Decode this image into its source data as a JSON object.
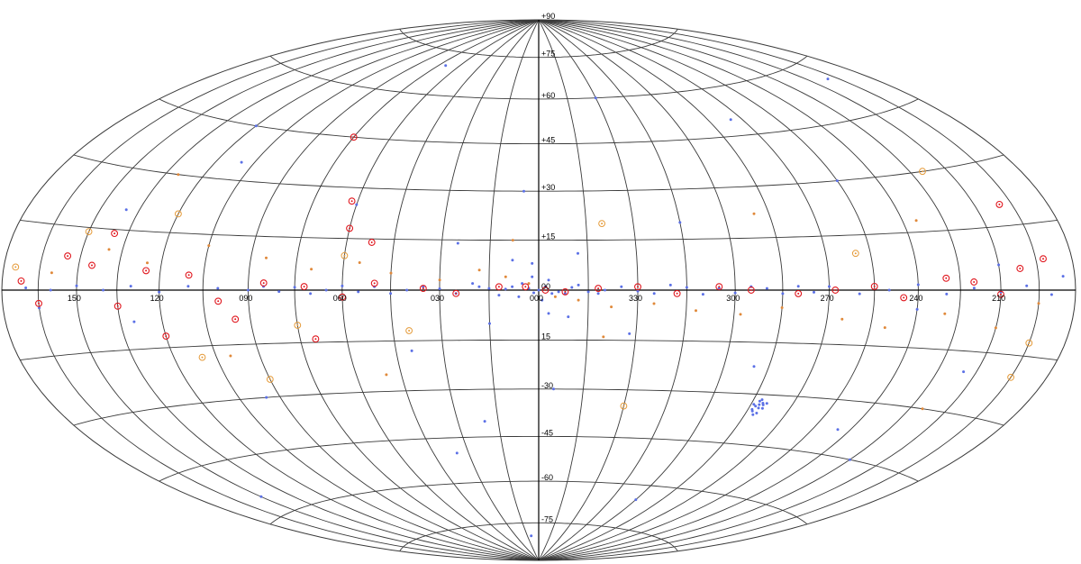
{
  "chart_data": {
    "type": "scatter",
    "projection": "aitoff-hammer",
    "coordinate_system": "galactic",
    "grid": true,
    "lat_ticks": [
      "+90",
      "+75",
      "+60",
      "+45",
      "+30",
      "+15",
      "00",
      "15",
      "-30",
      "-45",
      "-60",
      "-75"
    ],
    "lon_ticks": [
      "150",
      "120",
      "090",
      "060",
      "030",
      "000",
      "330",
      "300",
      "270",
      "240",
      "210"
    ],
    "meridians_deg": [
      -180,
      -165,
      -150,
      -135,
      -120,
      -105,
      -90,
      -75,
      -60,
      -45,
      -30,
      -15,
      0,
      15,
      30,
      45,
      60,
      75,
      90,
      105,
      120,
      135,
      150,
      165,
      180
    ],
    "parallels_deg": [
      -75,
      -60,
      -45,
      -30,
      -15,
      0,
      15,
      30,
      45,
      60,
      75
    ],
    "colors": {
      "blue_points": "#5b70e6",
      "orange_points": "#e0893a",
      "red_circles": "#e0181f",
      "orange_circles": "#e59b3a",
      "grid": "#3a3a3a"
    },
    "series": [
      {
        "key": "blue",
        "marker": "dot",
        "points": [
          [
            0,
            0
          ],
          [
            1.5,
            -0.8
          ],
          [
            -2,
            1
          ],
          [
            3,
            0.5
          ],
          [
            -4,
            -1
          ],
          [
            5,
            2
          ],
          [
            -1,
            -3
          ],
          [
            2,
            4
          ],
          [
            -3,
            3
          ],
          [
            6,
            -2
          ],
          [
            -6,
            -0.5
          ],
          [
            8,
            1
          ],
          [
            -8,
            -1
          ],
          [
            10,
            0.3
          ],
          [
            -10,
            0.8
          ],
          [
            12,
            -1.5
          ],
          [
            -12,
            1.5
          ],
          [
            15,
            0.5
          ],
          [
            -15,
            -0.5
          ],
          [
            18,
            1
          ],
          [
            -18,
            -1
          ],
          [
            20,
            2
          ],
          [
            -20,
            0
          ],
          [
            25,
            -1
          ],
          [
            -25,
            1
          ],
          [
            30,
            0.4
          ],
          [
            -30,
            -0.3
          ],
          [
            35,
            1
          ],
          [
            -35,
            -1
          ],
          [
            40,
            0
          ],
          [
            -40,
            1.5
          ],
          [
            45,
            -1
          ],
          [
            -45,
            0.8
          ],
          [
            50,
            1
          ],
          [
            -50,
            -1.2
          ],
          [
            55,
            -0.5
          ],
          [
            -55,
            0.6
          ],
          [
            60,
            1.2
          ],
          [
            -60,
            -0.8
          ],
          [
            65,
            0
          ],
          [
            -65,
            1
          ],
          [
            70,
            -1
          ],
          [
            -70,
            0.5
          ],
          [
            75,
            0.8
          ],
          [
            -75,
            -1
          ],
          [
            80,
            -0.4
          ],
          [
            -80,
            1.1
          ],
          [
            85,
            1
          ],
          [
            -85,
            -0.6
          ],
          [
            90,
            0
          ],
          [
            -90,
            1
          ],
          [
            100,
            0.5
          ],
          [
            -100,
            -1
          ],
          [
            110,
            1
          ],
          [
            -110,
            0
          ],
          [
            120,
            -0.5
          ],
          [
            -120,
            1.4
          ],
          [
            130,
            1
          ],
          [
            -130,
            -1
          ],
          [
            140,
            0
          ],
          [
            -140,
            0.5
          ],
          [
            150,
            1
          ],
          [
            -150,
            -0.5
          ],
          [
            160,
            0
          ],
          [
            -160,
            1
          ],
          [
            170,
            0.5
          ],
          [
            -170,
            -1
          ],
          [
            -78,
            -33
          ],
          [
            -79,
            -32.5
          ],
          [
            -77,
            -33.5
          ],
          [
            -78.5,
            -34
          ],
          [
            -77.5,
            -32
          ],
          [
            -79.5,
            -33
          ],
          [
            -76.5,
            -34.5
          ],
          [
            -78,
            -31.5
          ],
          [
            -80,
            -34
          ],
          [
            -77,
            -35
          ],
          [
            -79,
            -35.5
          ],
          [
            -76,
            -33
          ],
          [
            -80.5,
            -32.5
          ],
          [
            -78,
            -36
          ],
          [
            2,
            8
          ],
          [
            -3,
            -7
          ],
          [
            8,
            9
          ],
          [
            -9,
            -8
          ],
          [
            15,
            -10
          ],
          [
            -12,
            11
          ],
          [
            25,
            14
          ],
          [
            -28,
            -13
          ],
          [
            40,
            -18
          ],
          [
            -45,
            20
          ],
          [
            60,
            25
          ],
          [
            -70,
            -22
          ],
          [
            95,
            -30
          ],
          [
            -105,
            30
          ],
          [
            120,
            45
          ],
          [
            -135,
            -45
          ],
          [
            150,
            -55
          ],
          [
            -160,
            55
          ],
          [
            20,
            -40
          ],
          [
            -30,
            60
          ],
          [
            70,
            70
          ],
          [
            -60,
            -65
          ],
          [
            10,
            -80
          ],
          [
            -120,
            -5
          ],
          [
            130,
            -8
          ],
          [
            -150,
            6
          ],
          [
            165,
            -4
          ],
          [
            -175,
            3
          ],
          [
            5,
            30
          ],
          [
            -5,
            -30
          ],
          [
            35,
            -50
          ],
          [
            -85,
            50
          ],
          [
            110,
            35
          ],
          [
            -115,
            -38
          ],
          [
            140,
            20
          ],
          [
            -145,
            -20
          ]
        ]
      },
      {
        "key": "orange",
        "marker": "dot",
        "points": [
          [
            3,
            2
          ],
          [
            -5,
            -2
          ],
          [
            10,
            4
          ],
          [
            -12,
            -3
          ],
          [
            18,
            6
          ],
          [
            -22,
            -5
          ],
          [
            30,
            3
          ],
          [
            -35,
            -4
          ],
          [
            45,
            5
          ],
          [
            -48,
            -6
          ],
          [
            55,
            8
          ],
          [
            -62,
            -7
          ],
          [
            70,
            6
          ],
          [
            -75,
            -5
          ],
          [
            85,
            9
          ],
          [
            -95,
            -8
          ],
          [
            105,
            12
          ],
          [
            -110,
            -10
          ],
          [
            125,
            7
          ],
          [
            -130,
            -6
          ],
          [
            140,
            10
          ],
          [
            -150,
            -9
          ],
          [
            160,
            4
          ],
          [
            -165,
            -3
          ],
          [
            8,
            15
          ],
          [
            -20,
            -14
          ],
          [
            50,
            -25
          ],
          [
            -70,
            22
          ],
          [
            100,
            -18
          ],
          [
            -125,
            18
          ],
          [
            130,
            30
          ],
          [
            -140,
            -30
          ]
        ]
      },
      {
        "key": "red-circle",
        "marker": "circle",
        "points": [
          [
            -2,
            0
          ],
          [
            4,
            1
          ],
          [
            -8,
            -0.5
          ],
          [
            12,
            1
          ],
          [
            -18,
            0.5
          ],
          [
            25,
            -1
          ],
          [
            -30,
            1
          ],
          [
            35,
            0.5
          ],
          [
            -42,
            -1
          ],
          [
            50,
            2
          ],
          [
            -55,
            1
          ],
          [
            60,
            -2
          ],
          [
            -65,
            0
          ],
          [
            72,
            1
          ],
          [
            -80,
            -1
          ],
          [
            85,
            2
          ],
          [
            -92,
            0
          ],
          [
            100,
            -3
          ],
          [
            -105,
            1
          ],
          [
            110,
            4
          ],
          [
            -115,
            -2
          ],
          [
            125,
            5
          ],
          [
            -130,
            3
          ],
          [
            135,
            -4
          ],
          [
            -140,
            2
          ],
          [
            145,
            6
          ],
          [
            -150,
            -1
          ],
          [
            155,
            8
          ],
          [
            -158,
            5
          ],
          [
            165,
            -3
          ],
          [
            -168,
            7
          ],
          [
            172,
            2
          ],
          [
            60,
            18
          ],
          [
            70,
            -14
          ],
          [
            95,
            -8
          ],
          [
            120,
            -12
          ],
          [
            140,
            14
          ],
          [
            -160,
            20
          ],
          [
            75,
            45
          ],
          [
            62,
            26
          ],
          [
            52,
            14
          ]
        ]
      },
      {
        "key": "orange-circle",
        "marker": "circle",
        "points": [
          [
            -20,
            20
          ],
          [
            75,
            -10
          ],
          [
            -30,
            -35
          ],
          [
            90,
            -25
          ],
          [
            110,
            -18
          ],
          [
            150,
            14
          ],
          [
            -165,
            -12
          ],
          [
            175,
            5
          ],
          [
            -140,
            30
          ],
          [
            -165,
            -20
          ],
          [
            60,
            10
          ],
          [
            40,
            -12
          ],
          [
            120,
            20
          ],
          [
            -100,
            10
          ]
        ]
      }
    ]
  }
}
